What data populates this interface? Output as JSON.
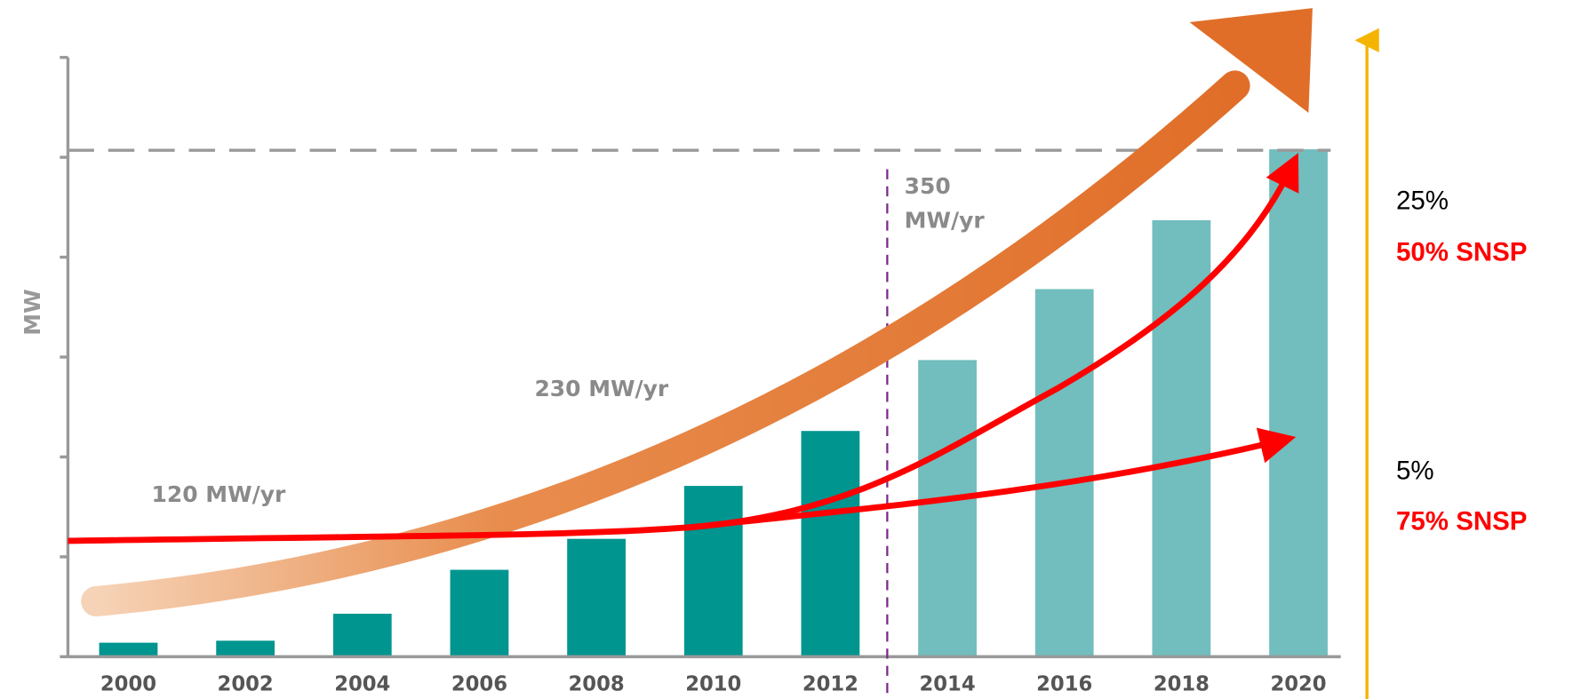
{
  "chart_data": {
    "type": "bar",
    "y_label": "MW",
    "categories": [
      "2000",
      "2002",
      "2004",
      "2006",
      "2008",
      "2010",
      "2012",
      "2014",
      "2016",
      "2018",
      "2020"
    ],
    "values": [
      0.14,
      0.16,
      0.43,
      0.87,
      1.18,
      1.71,
      2.26,
      2.97,
      3.68,
      4.37,
      5.08
    ],
    "colors": [
      "#00958f",
      "#00958f",
      "#00958f",
      "#00958f",
      "#00958f",
      "#00958f",
      "#00958f",
      "#72bdbd",
      "#72bdbd",
      "#72bdbd",
      "#72bdbd"
    ],
    "ylim": [
      0,
      6
    ],
    "yticks": [
      0,
      1,
      2,
      3,
      4,
      5,
      6
    ],
    "target_line": 5.07,
    "annotations": [
      "120 MW/yr",
      "230 MW/yr",
      "350",
      "MW/yr"
    ],
    "side_labels": [
      {
        "share": "25%",
        "snsp": "50% SNSP"
      },
      {
        "share": "5%",
        "snsp": "75% SNSP"
      }
    ]
  }
}
